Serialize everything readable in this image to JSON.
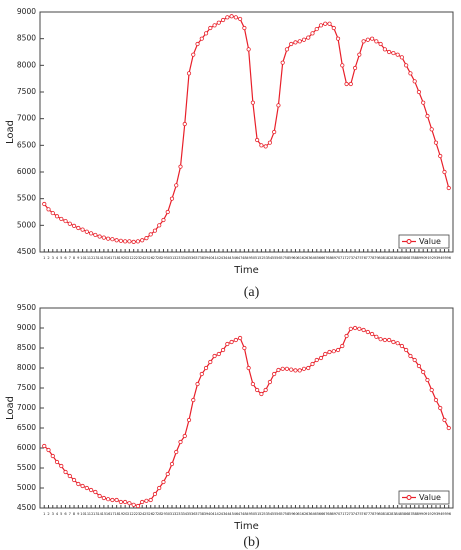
{
  "chart_data": [
    {
      "type": "line",
      "xlabel": "Time",
      "ylabel": "Load",
      "caption": "(a)",
      "legend": "lower right",
      "categories": [
        1,
        2,
        3,
        4,
        5,
        6,
        7,
        8,
        9,
        10,
        11,
        12,
        13,
        14,
        15,
        16,
        17,
        18,
        19,
        20,
        21,
        22,
        23,
        24,
        25,
        26,
        27,
        28,
        29,
        30,
        31,
        32,
        33,
        34,
        35,
        36,
        37,
        38,
        39,
        40,
        41,
        42,
        43,
        44,
        45,
        46,
        47,
        48,
        49,
        50,
        51,
        52,
        53,
        54,
        55,
        56,
        57,
        58,
        59,
        60,
        61,
        62,
        63,
        64,
        65,
        66,
        67,
        68,
        69,
        70,
        71,
        72,
        73,
        74,
        75,
        76,
        77,
        78,
        79,
        80,
        81,
        82,
        83,
        84,
        85,
        86,
        87,
        88,
        89,
        90,
        91,
        92,
        93,
        94,
        95,
        96
      ],
      "ylim": [
        4500,
        9000
      ],
      "yticks": [
        4500,
        5000,
        5500,
        6000,
        6500,
        7000,
        7500,
        8000,
        8500,
        9000
      ],
      "series": [
        {
          "name": "Value",
          "color": "#e8202a",
          "values": [
            5400,
            5300,
            5230,
            5170,
            5120,
            5080,
            5030,
            4990,
            4950,
            4920,
            4880,
            4850,
            4820,
            4790,
            4770,
            4750,
            4740,
            4720,
            4710,
            4700,
            4700,
            4690,
            4700,
            4720,
            4760,
            4830,
            4900,
            5000,
            5100,
            5250,
            5500,
            5750,
            6100,
            6900,
            7850,
            8200,
            8400,
            8500,
            8600,
            8700,
            8750,
            8800,
            8850,
            8900,
            8920,
            8900,
            8870,
            8700,
            8300,
            7300,
            6600,
            6500,
            6480,
            6550,
            6750,
            7250,
            8050,
            8300,
            8400,
            8430,
            8450,
            8480,
            8520,
            8600,
            8680,
            8750,
            8780,
            8780,
            8700,
            8500,
            8000,
            7650,
            7650,
            7950,
            8200,
            8450,
            8480,
            8500,
            8450,
            8400,
            8300,
            8250,
            8230,
            8200,
            8150,
            8000,
            7850,
            7700,
            7500,
            7300,
            7050,
            6800,
            6550,
            6300,
            6000,
            5700
          ]
        }
      ]
    },
    {
      "type": "line",
      "xlabel": "Time",
      "ylabel": "Load",
      "caption": "(b)",
      "legend": "lower right",
      "categories": [
        1,
        2,
        3,
        4,
        5,
        6,
        7,
        8,
        9,
        10,
        11,
        12,
        13,
        14,
        15,
        16,
        17,
        18,
        19,
        20,
        21,
        22,
        23,
        24,
        25,
        26,
        27,
        28,
        29,
        30,
        31,
        32,
        33,
        34,
        35,
        36,
        37,
        38,
        39,
        40,
        41,
        42,
        43,
        44,
        45,
        46,
        47,
        48,
        49,
        50,
        51,
        52,
        53,
        54,
        55,
        56,
        57,
        58,
        59,
        60,
        61,
        62,
        63,
        64,
        65,
        66,
        67,
        68,
        69,
        70,
        71,
        72,
        73,
        74,
        75,
        76,
        77,
        78,
        79,
        80,
        81,
        82,
        83,
        84,
        85,
        86,
        87,
        88,
        89,
        90,
        91,
        92,
        93,
        94,
        95,
        96
      ],
      "ylim": [
        4500,
        9500
      ],
      "yticks": [
        4500,
        5000,
        5500,
        6000,
        6500,
        7000,
        7500,
        8000,
        8500,
        9000,
        9500
      ],
      "series": [
        {
          "name": "Value",
          "color": "#e8202a",
          "values": [
            6050,
            5950,
            5800,
            5650,
            5550,
            5400,
            5300,
            5200,
            5100,
            5050,
            5000,
            4950,
            4900,
            4800,
            4750,
            4720,
            4700,
            4700,
            4650,
            4650,
            4620,
            4580,
            4550,
            4650,
            4680,
            4700,
            4850,
            5000,
            5150,
            5350,
            5600,
            5900,
            6150,
            6300,
            6700,
            7200,
            7600,
            7850,
            8000,
            8150,
            8300,
            8350,
            8450,
            8600,
            8650,
            8700,
            8750,
            8500,
            8000,
            7600,
            7450,
            7350,
            7450,
            7650,
            7850,
            7950,
            7980,
            7980,
            7960,
            7940,
            7940,
            7980,
            8000,
            8100,
            8200,
            8250,
            8350,
            8400,
            8420,
            8450,
            8550,
            8800,
            8980,
            9000,
            8980,
            8950,
            8900,
            8850,
            8780,
            8720,
            8700,
            8700,
            8650,
            8620,
            8550,
            8450,
            8300,
            8200,
            8050,
            7900,
            7700,
            7450,
            7200,
            7000,
            6700,
            6500
          ]
        }
      ]
    }
  ]
}
